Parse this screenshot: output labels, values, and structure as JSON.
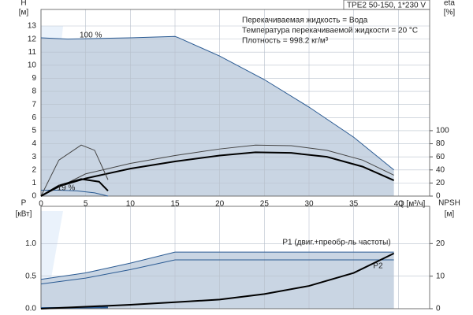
{
  "chart_data": [
    {
      "type": "line",
      "title": "TPE2 50-150, 1*230 V",
      "info": [
        "Перекачиваемая жидкость = Вода",
        "Температура перекачиваемой жидкости = 20 °C",
        "Плотность = 998.2 кг/м³"
      ],
      "ylabel": [
        "H",
        "[м]"
      ],
      "y2label": [
        "eta",
        "[%]"
      ],
      "xlabel": "Q [м³/ч]",
      "annotations": [
        {
          "text": "100 %",
          "x": 3,
          "y": 12.3
        },
        {
          "text": "19 %",
          "x": 0.5,
          "y": 0.6
        }
      ],
      "xlim": [
        0,
        43.5
      ],
      "ylim": [
        0,
        13
      ],
      "y2lim": [
        0,
        260
      ],
      "xticks": [
        0,
        5,
        10,
        15,
        20,
        25,
        30,
        35,
        40
      ],
      "yticks": [
        0,
        1,
        2,
        3,
        4,
        5,
        6,
        7,
        8,
        9,
        10,
        11,
        12,
        13
      ],
      "y2ticks": [
        0,
        20,
        40,
        60,
        80,
        100
      ],
      "grid": true,
      "series": [
        {
          "color": "#2a5a92",
          "fill": "#c9d5e3",
          "x": [
            0,
            3,
            10,
            15,
            15.4,
            20,
            25,
            30,
            35,
            39.5
          ],
          "values": [
            12.1,
            12,
            12.1,
            12.2,
            12.1,
            10.7,
            8.9,
            6.8,
            4.5,
            2
          ]
        },
        {
          "color": "#2a5a92",
          "x": [
            0,
            2,
            4,
            6,
            7.5
          ],
          "values": [
            0.45,
            0.45,
            0.4,
            0.25,
            0
          ]
        },
        {
          "color": "#444444",
          "axis": "y2",
          "x": [
            0,
            5,
            10,
            15,
            20,
            24,
            28,
            32,
            36,
            39.5
          ],
          "values": [
            0,
            34,
            50,
            62,
            72,
            78,
            77,
            70,
            55,
            32
          ]
        },
        {
          "color": "#000000",
          "width": 2,
          "axis": "y2",
          "x": [
            0,
            2,
            5,
            10,
            15,
            20,
            24,
            28,
            32,
            36,
            39.5
          ],
          "values": [
            0,
            15,
            27,
            42,
            53,
            62,
            67,
            66,
            60,
            45,
            24
          ]
        },
        {
          "color": "#444444",
          "axis": "y2",
          "x": [
            0,
            2,
            4.5,
            6,
            7.5
          ],
          "values": [
            0,
            55,
            78,
            70,
            25
          ]
        },
        {
          "color": "#000000",
          "width": 2,
          "axis": "y2",
          "x": [
            0,
            2,
            4.5,
            6.5,
            7.5
          ],
          "values": [
            0,
            16,
            26,
            22,
            8
          ]
        }
      ]
    },
    {
      "type": "line",
      "ylabel": [
        "P",
        "[кВт]"
      ],
      "y2label": [
        "NPSH",
        "[м]"
      ],
      "xlim": [
        0,
        43.5
      ],
      "ylim": [
        0,
        1.5
      ],
      "y2lim": [
        0,
        30
      ],
      "xticks": [
        0,
        5,
        10,
        15,
        20,
        25,
        30,
        35,
        40
      ],
      "yticks": [
        {
          "value": 0,
          "label": "0.0"
        },
        {
          "value": 0.5,
          "label": "0.5"
        },
        {
          "value": 1,
          "label": "1.0"
        }
      ],
      "y2ticks": [
        0,
        10,
        20
      ],
      "grid": true,
      "series": [
        {
          "name": "P1 (двиг.+преобр-ль частоты)",
          "color": "#2a5a92",
          "fill": "#c9d5e3",
          "x": [
            0,
            5,
            10,
            15,
            20,
            30,
            39.5
          ],
          "values": [
            0.45,
            0.55,
            0.7,
            0.87,
            0.87,
            0.87,
            0.87
          ]
        },
        {
          "name": "P2",
          "color": "#2a5a92",
          "x": [
            0,
            5,
            10,
            15,
            20,
            30,
            39.5
          ],
          "values": [
            0.38,
            0.47,
            0.6,
            0.75,
            0.75,
            0.75,
            0.75
          ]
        },
        {
          "color": "#2a5a92",
          "width": 2,
          "x": [
            0,
            7.5
          ],
          "values": [
            0.01,
            0.02
          ]
        },
        {
          "color": "#000000",
          "width": 2,
          "axis": "y2",
          "x": [
            0,
            5,
            10,
            15,
            20,
            25,
            30,
            35,
            39.5
          ],
          "values": [
            0,
            0.6,
            1.2,
            2,
            2.8,
            4.5,
            7,
            11,
            17
          ]
        }
      ]
    }
  ]
}
